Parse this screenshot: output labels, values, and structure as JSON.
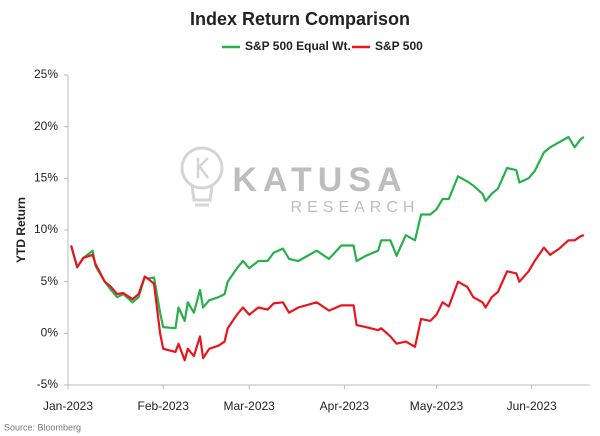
{
  "chart_data": {
    "type": "line",
    "title": "Index Return Comparison",
    "y_label": "YTD Return",
    "source": "Source: Bloomberg",
    "watermark": {
      "line1": "KATUSA",
      "line2": "RESEARCH"
    },
    "legend": "top",
    "grid": false,
    "xlim": [
      0,
      170
    ],
    "xticks": [
      {
        "value": 0,
        "label": "Jan-2023"
      },
      {
        "value": 31,
        "label": "Feb-2023"
      },
      {
        "value": 59,
        "label": "Mar-2023"
      },
      {
        "value": 90,
        "label": "Apr-2023"
      },
      {
        "value": 120,
        "label": "May-2023"
      },
      {
        "value": 151,
        "label": "Jun-2023"
      }
    ],
    "ylim": [
      -5,
      25
    ],
    "yticks": [
      {
        "value": -5,
        "label": "-5%"
      },
      {
        "value": 0,
        "label": "0%"
      },
      {
        "value": 5,
        "label": "5%"
      },
      {
        "value": 10,
        "label": "10%"
      },
      {
        "value": 15,
        "label": "15%"
      },
      {
        "value": 20,
        "label": "20%"
      },
      {
        "value": 25,
        "label": "25%"
      }
    ],
    "x": [
      1,
      3,
      5,
      8,
      9,
      12,
      14,
      16,
      18,
      21,
      23,
      25,
      26,
      28,
      30,
      31,
      35,
      36,
      38,
      39,
      41,
      43,
      44,
      46,
      49,
      51,
      52,
      55,
      57,
      59,
      62,
      65,
      67,
      70,
      72,
      75,
      81,
      85,
      89,
      93,
      94,
      97,
      101,
      102,
      105,
      107,
      110,
      113,
      115,
      118,
      120,
      122,
      124,
      127,
      130,
      132,
      135,
      136,
      138,
      140,
      143,
      146,
      147,
      150,
      152,
      155,
      157,
      160,
      163,
      165,
      167,
      168
    ],
    "series": [
      {
        "name": "S&P 500 Equal Wt.",
        "color": "#27b04b",
        "values": [
          8.5,
          6.4,
          7.3,
          8.0,
          6.5,
          5.0,
          4.2,
          3.5,
          3.8,
          3.0,
          3.5,
          5.5,
          5.3,
          5.4,
          2.0,
          0.6,
          0.5,
          2.5,
          1.2,
          3.0,
          2.0,
          4.2,
          2.5,
          3.2,
          3.5,
          3.8,
          5.0,
          6.3,
          7.0,
          6.3,
          7.0,
          7.0,
          7.8,
          8.2,
          7.2,
          7.0,
          8.0,
          7.2,
          8.5,
          8.5,
          7.0,
          7.5,
          8.0,
          9.0,
          9.0,
          7.5,
          9.5,
          9.0,
          11.5,
          11.5,
          12.0,
          13.0,
          13.0,
          15.2,
          14.7,
          14.3,
          13.5,
          12.8,
          13.5,
          14.0,
          16.0,
          15.8,
          14.6,
          15.0,
          15.7,
          17.5,
          18.0,
          18.5,
          19.0,
          18.0,
          18.8,
          19.0
        ]
      },
      {
        "name": "S&P 500",
        "color": "#e8151d",
        "values": [
          8.5,
          6.4,
          7.3,
          7.6,
          6.7,
          5.0,
          4.5,
          3.8,
          3.9,
          3.3,
          3.8,
          5.5,
          5.3,
          4.8,
          0.0,
          -1.5,
          -1.8,
          -1.0,
          -2.6,
          -1.5,
          -2.2,
          -0.3,
          -2.4,
          -1.5,
          -1.2,
          -0.8,
          0.5,
          1.8,
          2.5,
          1.8,
          2.5,
          2.3,
          2.9,
          3.0,
          2.0,
          2.5,
          3.0,
          2.2,
          2.7,
          2.7,
          0.8,
          0.6,
          0.3,
          0.5,
          -0.3,
          -1.0,
          -0.8,
          -1.3,
          1.4,
          1.2,
          1.8,
          3.0,
          2.6,
          5.0,
          4.5,
          3.5,
          3.0,
          2.5,
          3.5,
          4.0,
          6.0,
          5.8,
          5.0,
          6.0,
          7.0,
          8.3,
          7.6,
          8.2,
          9.0,
          9.0,
          9.4,
          9.5
        ]
      }
    ]
  }
}
